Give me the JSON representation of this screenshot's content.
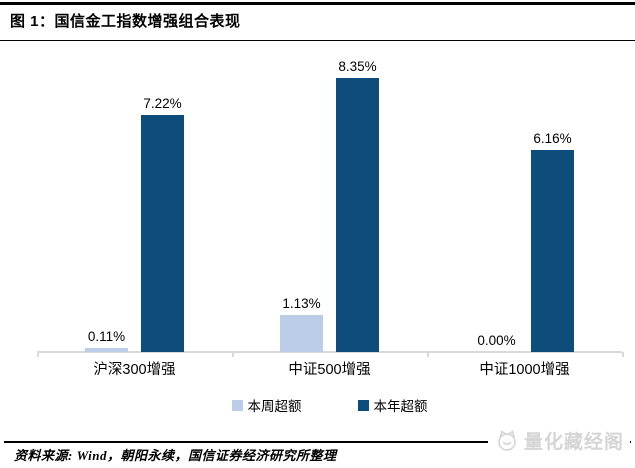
{
  "page": {
    "title": "图 1：国信金工指数增强组合表现",
    "source_note": "资料来源: Wind，朝阳永续，国信证券经济研究所整理",
    "logo": {
      "text": "量化藏经阁",
      "icon": "mascot-face-icon"
    }
  },
  "chart_data": {
    "type": "bar",
    "title": "国信金工指数增强组合表现",
    "categories": [
      "沪深300增强",
      "中证500增强",
      "中证1000增强"
    ],
    "series": [
      {
        "name": "本周超额",
        "color": "#BCCDE9",
        "values": [
          0.11,
          1.13,
          0.0
        ],
        "labels": [
          "0.11%",
          "1.13%",
          "0.00%"
        ]
      },
      {
        "name": "本年超额",
        "color": "#0E4C7C",
        "values": [
          7.22,
          8.35,
          6.16
        ],
        "labels": [
          "7.22%",
          "8.35%",
          "6.16%"
        ]
      }
    ],
    "xlabel": "",
    "ylabel": "",
    "unit": "%",
    "ylim": [
      0,
      9
    ],
    "grid": false,
    "y_axis_shown": false,
    "legend_position": "bottom",
    "axis_color": "#D9D9D9"
  },
  "colors": {
    "week_series": "#BCCDE9",
    "year_series": "#0E4C7C",
    "axis_line": "#D9D9D9",
    "rules": "#000000",
    "logo_gray": "#D5D5D5",
    "background": "#FFFFFF"
  }
}
